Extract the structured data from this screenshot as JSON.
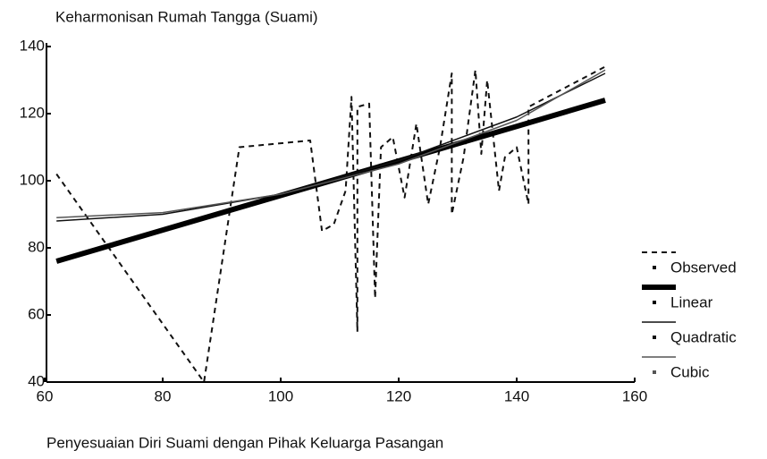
{
  "chart_data": {
    "type": "line",
    "title": "Keharmonisan Rumah Tangga (Suami)",
    "x_label": "Penyesuaian Diri Suami dengan Pihak Keluarga Pasangan",
    "xlim": [
      60,
      160
    ],
    "xticks": [
      60,
      80,
      100,
      120,
      140,
      160
    ],
    "ylim": [
      40,
      140
    ],
    "yticks": [
      40,
      60,
      80,
      100,
      120,
      140
    ],
    "legend": "right",
    "series": [
      {
        "name": "Observed",
        "color": "#111111",
        "line_width": 2,
        "dash": true,
        "x": [
          62,
          87,
          93,
          105,
          107,
          109,
          111,
          112,
          113,
          113,
          115,
          116,
          117,
          119,
          121,
          123,
          125,
          127,
          129,
          129,
          131,
          133,
          134,
          135,
          137,
          138,
          140,
          142,
          142,
          155
        ],
        "values": [
          102,
          40,
          110,
          112,
          85,
          87,
          97,
          125,
          55,
          122,
          123,
          65,
          110,
          113,
          95,
          117,
          93,
          110,
          132,
          90,
          107,
          133,
          108,
          130,
          97,
          107,
          110,
          93,
          122,
          134
        ]
      },
      {
        "name": "Linear",
        "color": "#000000",
        "line_width": 6,
        "dash": false,
        "x": [
          62,
          80,
          100,
          120,
          140,
          155
        ],
        "values": [
          76,
          85.3,
          95.6,
          105.9,
          116.2,
          124
        ]
      },
      {
        "name": "Quadratic",
        "color": "#111111",
        "line_width": 1.5,
        "dash": false,
        "x": [
          62,
          80,
          100,
          120,
          140,
          155
        ],
        "values": [
          88,
          90,
          96,
          106,
          119,
          132
        ]
      },
      {
        "name": "Cubic",
        "color": "#555555",
        "line_width": 1.5,
        "dash": false,
        "x": [
          62,
          80,
          100,
          120,
          140,
          155
        ],
        "values": [
          89,
          90.5,
          96,
          105,
          118,
          133
        ]
      }
    ]
  }
}
